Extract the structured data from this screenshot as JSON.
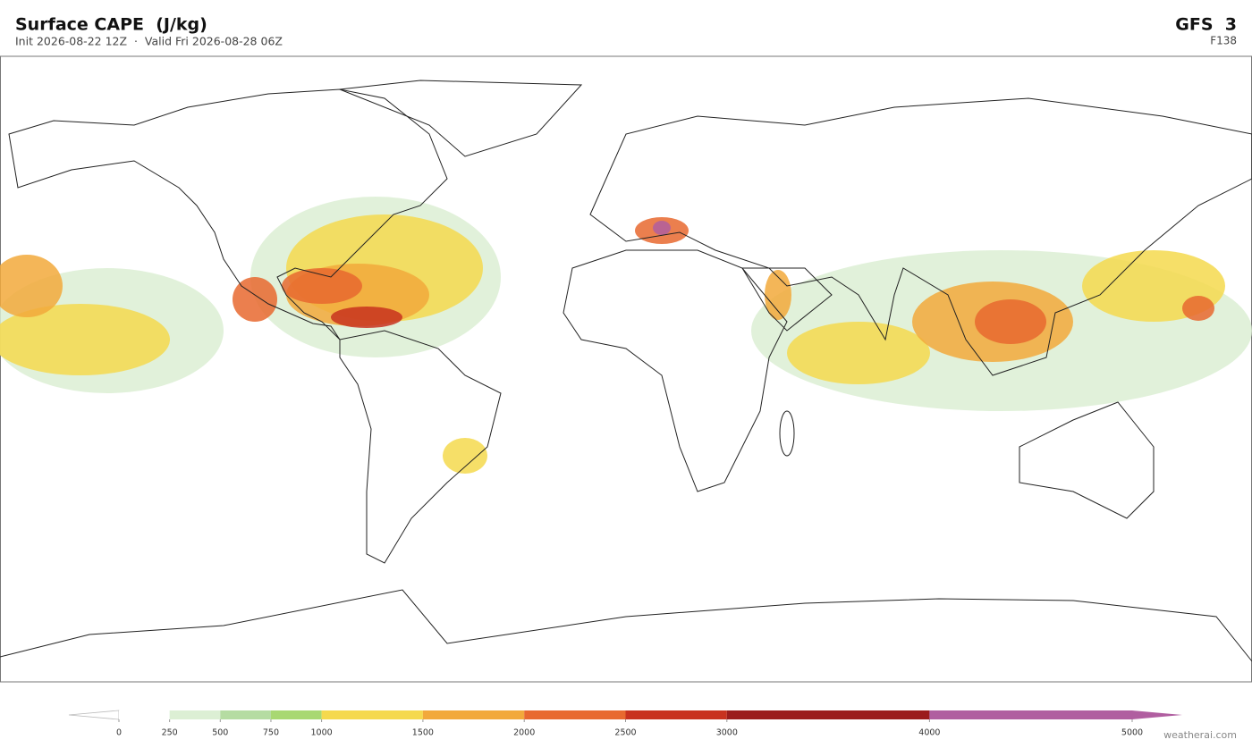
{
  "header": {
    "title": "Surface CAPE  (J/kg)",
    "subtitle": "Init 2026-08-22 12Z  ·  Valid Fri 2026-08-28 06Z",
    "model": "GFS  3",
    "forecast": "F138"
  },
  "colorbar": {
    "levels": [
      0,
      250,
      500,
      750,
      1000,
      1500,
      2000,
      2500,
      3000,
      4000,
      5000
    ],
    "colors": [
      "#ffffff",
      "#dcefd4",
      "#b5dca2",
      "#a8d872",
      "#f5d94e",
      "#f2a93b",
      "#e8692f",
      "#c8321f",
      "#9b1c1c",
      "#b05ea0"
    ],
    "extend": "both"
  },
  "footer": {
    "credit": "weatherai.com"
  }
}
